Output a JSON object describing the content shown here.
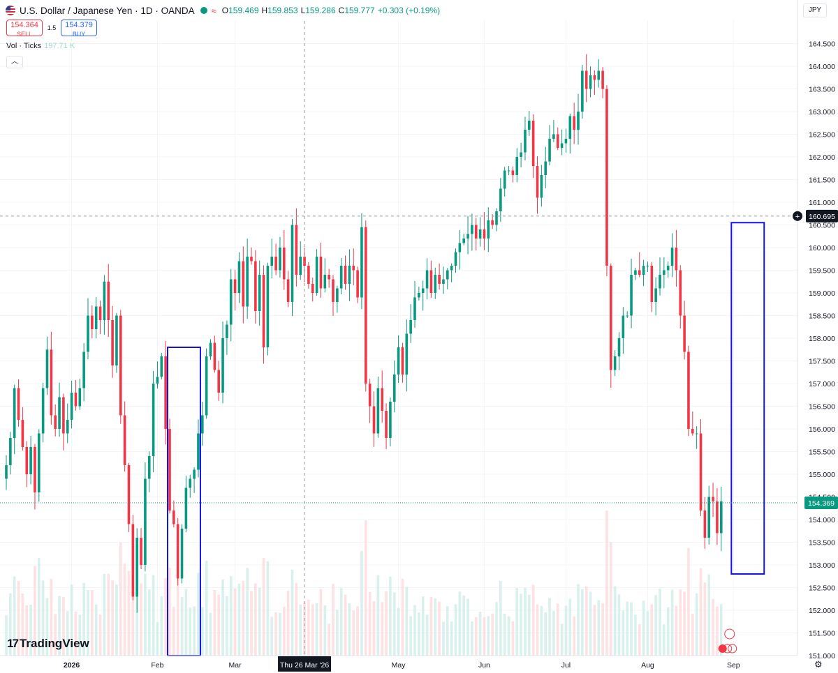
{
  "header": {
    "title": "U.S. Dollar / Japanese Yen · 1D · OANDA",
    "open_label": "O",
    "open": "159.469",
    "high_label": "H",
    "high": "159.853",
    "low_label": "L",
    "low": "159.286",
    "close_label": "C",
    "close": "159.777",
    "change": "+0.303 (+0.19%)"
  },
  "trade": {
    "sell_price": "154.364",
    "sell_label": "SELL",
    "spread": "1.5",
    "buy_price": "154.379",
    "buy_label": "BUY"
  },
  "volume": {
    "label": "Vol · Ticks",
    "value": "197.71 K"
  },
  "currency": "JPY",
  "logo": {
    "mark": "17",
    "text": "TradingView"
  },
  "icons": {
    "flag": "us-flag-icon",
    "live": "live-dot-icon",
    "collapse": "chevron-up-icon",
    "settings": "gear-icon",
    "plus": "plus-icon"
  },
  "colors": {
    "up": "#089981",
    "down": "#f23645",
    "box": "#1414e6",
    "price_label_bg": "#089981",
    "crosshair_label_bg": "#131722"
  },
  "chart_data": {
    "type": "candlestick",
    "ylim": [
      151.0,
      165.0
    ],
    "yticks": [
      "151.000",
      "151.500",
      "152.000",
      "152.500",
      "153.000",
      "153.500",
      "154.000",
      "154.500",
      "155.000",
      "155.500",
      "156.000",
      "156.500",
      "157.000",
      "157.500",
      "158.000",
      "158.500",
      "159.000",
      "159.500",
      "160.000",
      "160.500",
      "161.000",
      "161.500",
      "162.000",
      "162.500",
      "163.000",
      "163.500",
      "164.000",
      "164.500"
    ],
    "xticks": [
      "2026",
      "Feb",
      "Mar",
      "May",
      "Jun",
      "Jul",
      "Aug",
      "Sep"
    ],
    "crosshair": {
      "date_label": "Thu 26 Mar '26",
      "price_label": "160.695",
      "price": 160.695
    },
    "last_price": {
      "label": "154.369",
      "value": 154.369
    },
    "highlight_boxes": [
      {
        "from": 151,
        "to": 157.8
      },
      {
        "from": 152.8,
        "to": 160.55
      }
    ],
    "closes": [
      155.2,
      155.8,
      156.9,
      156.2,
      155.6,
      155.0,
      155.6,
      154.6,
      155.9,
      156.9,
      157.75,
      156.3,
      156.0,
      156.7,
      155.9,
      156.2,
      156.8,
      156.5,
      156.9,
      157.7,
      158.5,
      158.2,
      158.7,
      158.4,
      159.25,
      158.4,
      157.4,
      158.5,
      156.3,
      155.2,
      153.9,
      152.3,
      153.6,
      153.0,
      154.9,
      155.4,
      157.0,
      157.15,
      157.6,
      156.0,
      154.2,
      153.9,
      152.7,
      153.8,
      154.7,
      154.9,
      155.1,
      155.9,
      156.3,
      157.6,
      157.9,
      157.3,
      156.8,
      158.0,
      158.3,
      159.3,
      159.0,
      159.7,
      158.7,
      159.8,
      159.7,
      158.6,
      159.4,
      157.8,
      159.6,
      159.8,
      159.5,
      160.0,
      159.3,
      158.8,
      160.5,
      159.4,
      159.8,
      159.6,
      159.2,
      159.0,
      159.8,
      159.1,
      159.4,
      159.3,
      158.8,
      159.1,
      159.6,
      159.2,
      159.6,
      159.5,
      158.9,
      160.45,
      157.0,
      156.5,
      155.9,
      156.9,
      156.4,
      155.8,
      156.6,
      157.2,
      157.8,
      157.2,
      158.1,
      158.4,
      158.9,
      159.0,
      159.1,
      159.5,
      159.0,
      159.4,
      159.2,
      159.3,
      159.5,
      159.6,
      159.9,
      160.1,
      160.2,
      160.3,
      160.5,
      160.2,
      160.4,
      160.2,
      160.6,
      160.5,
      160.8,
      161.3,
      161.7,
      161.7,
      161.6,
      162.0,
      162.1,
      162.6,
      162.8,
      161.8,
      161.1,
      161.6,
      161.9,
      162.4,
      162.5,
      162.2,
      162.3,
      162.4,
      162.9,
      162.6,
      163.0,
      163.9,
      163.5,
      163.8,
      163.7,
      163.9,
      163.5,
      159.6,
      157.3,
      157.6,
      158.0,
      158.5,
      158.5,
      159.4,
      159.5,
      159.4,
      159.6,
      159.6,
      158.8,
      159.1,
      159.4,
      159.5,
      159.6,
      160.0,
      159.5,
      158.5,
      157.7,
      156.0,
      155.9,
      155.9,
      154.2,
      153.6,
      154.5,
      154.4,
      153.7,
      154.4
    ]
  }
}
